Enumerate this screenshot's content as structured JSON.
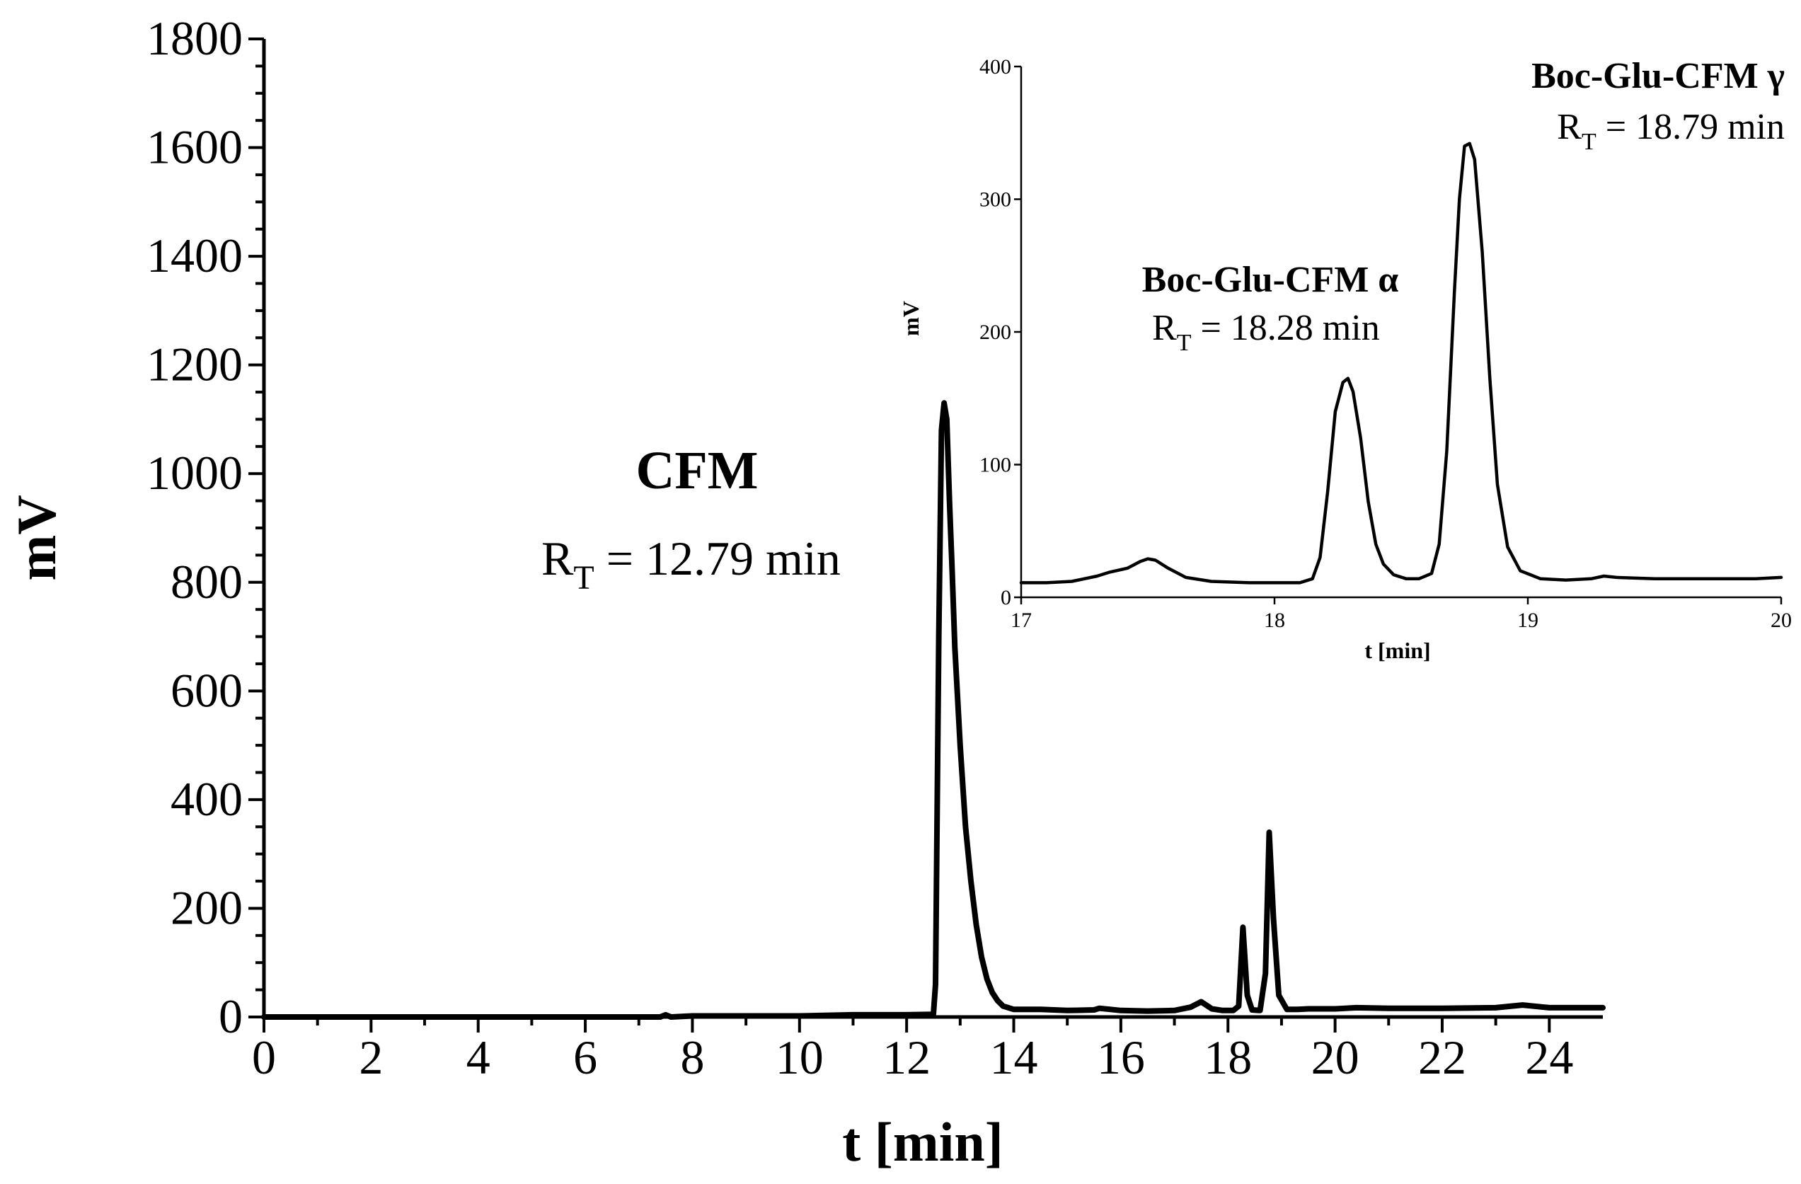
{
  "chart_data": [
    {
      "type": "line",
      "name": "main",
      "xlabel": "t [min]",
      "ylabel": "mV",
      "xlim": [
        0,
        25
      ],
      "ylim": [
        0,
        1800
      ],
      "xticks": [
        0,
        2,
        4,
        6,
        8,
        10,
        12,
        14,
        16,
        18,
        20,
        22,
        24
      ],
      "yticks": [
        0,
        200,
        400,
        600,
        800,
        1000,
        1200,
        1400,
        1600,
        1800
      ],
      "grid": false,
      "series": [
        {
          "x": [
            0,
            2,
            4,
            6,
            7.4,
            7.5,
            7.6,
            8,
            10,
            11,
            12,
            12.5,
            12.54,
            12.6,
            12.65,
            12.7,
            12.75,
            12.8,
            12.85,
            12.9,
            13.0,
            13.1,
            13.2,
            13.3,
            13.4,
            13.5,
            13.6,
            13.7,
            13.8,
            14.0,
            14.5,
            15.0,
            15.5,
            15.6,
            16.0,
            16.5,
            17.0,
            17.3,
            17.5,
            17.7,
            17.9,
            18.1,
            18.2,
            18.28,
            18.36,
            18.45,
            18.6,
            18.7,
            18.77,
            18.85,
            18.95,
            19.1,
            19.3,
            19.5,
            20.0,
            20.4,
            21.0,
            22.0,
            23.0,
            23.5,
            24.0,
            25.0
          ],
          "y": [
            0,
            0,
            0,
            0,
            0,
            4,
            0,
            2,
            2,
            4,
            4,
            5,
            60,
            700,
            1080,
            1130,
            1100,
            950,
            820,
            680,
            500,
            350,
            250,
            170,
            110,
            70,
            45,
            30,
            20,
            14,
            14,
            12,
            13,
            16,
            12,
            11,
            12,
            18,
            28,
            15,
            12,
            12,
            20,
            165,
            40,
            13,
            12,
            80,
            340,
            180,
            40,
            14,
            14,
            15,
            15,
            17,
            16,
            16,
            17,
            22,
            17,
            17
          ]
        }
      ],
      "annotations": [
        {
          "title": "CFM",
          "rt_symbol": "R",
          "rt_sub": "T",
          "rt_value": " = 12.79 min"
        }
      ]
    },
    {
      "type": "line",
      "name": "inset",
      "xlabel": "t [min]",
      "ylabel": "mV",
      "xlim": [
        17,
        20
      ],
      "ylim": [
        0,
        400
      ],
      "xticks": [
        17,
        18,
        19,
        20
      ],
      "yticks": [
        0,
        100,
        200,
        300,
        400
      ],
      "grid": false,
      "series": [
        {
          "x": [
            17.0,
            17.1,
            17.2,
            17.3,
            17.35,
            17.42,
            17.47,
            17.5,
            17.53,
            17.58,
            17.65,
            17.75,
            17.9,
            18.0,
            18.1,
            18.15,
            18.18,
            18.21,
            18.24,
            18.27,
            18.29,
            18.31,
            18.34,
            18.37,
            18.4,
            18.43,
            18.47,
            18.52,
            18.57,
            18.62,
            18.65,
            18.68,
            18.71,
            18.73,
            18.75,
            18.77,
            18.79,
            18.82,
            18.85,
            18.88,
            18.92,
            18.97,
            19.05,
            19.15,
            19.25,
            19.3,
            19.35,
            19.5,
            19.7,
            19.9,
            20.0
          ],
          "y": [
            11,
            11,
            12,
            16,
            19,
            22,
            27,
            29,
            28,
            22,
            15,
            12,
            11,
            11,
            11,
            14,
            30,
            80,
            140,
            162,
            165,
            155,
            120,
            72,
            40,
            25,
            17,
            14,
            14,
            18,
            40,
            110,
            230,
            300,
            340,
            342,
            330,
            260,
            165,
            85,
            38,
            20,
            14,
            13,
            14,
            16,
            15,
            14,
            14,
            14,
            15
          ]
        }
      ],
      "annotations": [
        {
          "title": "Boc-Glu-CFM α",
          "rt_symbol": "R",
          "rt_sub": "T",
          "rt_value": " = 18.28 min"
        },
        {
          "title": "Boc-Glu-CFM γ",
          "rt_symbol": "R",
          "rt_sub": "T",
          "rt_value": " = 18.79 min"
        }
      ]
    }
  ]
}
